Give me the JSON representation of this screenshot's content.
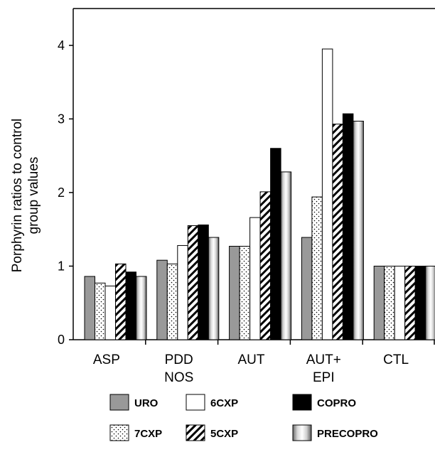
{
  "chart_data": {
    "type": "bar",
    "categories": [
      [
        "ASP"
      ],
      [
        "PDD",
        "NOS"
      ],
      [
        "AUT"
      ],
      [
        "AUT+",
        "EPI"
      ],
      [
        "CTL"
      ]
    ],
    "ylabel_lines": [
      "Porphyrin ratios to control",
      "group values"
    ],
    "ylim": [
      0,
      4.5
    ],
    "yticks": [
      0,
      1,
      2,
      3,
      4
    ],
    "grid": false,
    "legend_position": "bottom",
    "series": [
      {
        "name": "URO",
        "values": [
          0.86,
          1.08,
          1.27,
          1.39,
          1.0
        ],
        "pattern": "gray"
      },
      {
        "name": "7CXP",
        "values": [
          0.77,
          1.03,
          1.27,
          1.94,
          1.0
        ],
        "pattern": "dots"
      },
      {
        "name": "6CXP",
        "values": [
          0.73,
          1.28,
          1.66,
          3.95,
          1.0
        ],
        "pattern": "white"
      },
      {
        "name": "5CXP",
        "values": [
          1.03,
          1.55,
          2.01,
          2.93,
          1.0
        ],
        "pattern": "hatch"
      },
      {
        "name": "COPRO",
        "values": [
          0.92,
          1.56,
          2.6,
          3.07,
          1.0
        ],
        "pattern": "black"
      },
      {
        "name": "PRECOPRO",
        "values": [
          0.86,
          1.39,
          2.28,
          2.97,
          1.0
        ],
        "pattern": "gradient"
      }
    ],
    "legend": [
      {
        "name": "URO",
        "pattern": "gray"
      },
      {
        "name": "6CXP",
        "pattern": "white"
      },
      {
        "name": "COPRO",
        "pattern": "black"
      },
      {
        "name": "7CXP",
        "pattern": "dots"
      },
      {
        "name": "5CXP",
        "pattern": "hatch"
      },
      {
        "name": "PRECOPRO",
        "pattern": "gradient"
      }
    ],
    "colors": {
      "gray": "#999999",
      "black": "#000000",
      "white": "#ffffff"
    }
  }
}
